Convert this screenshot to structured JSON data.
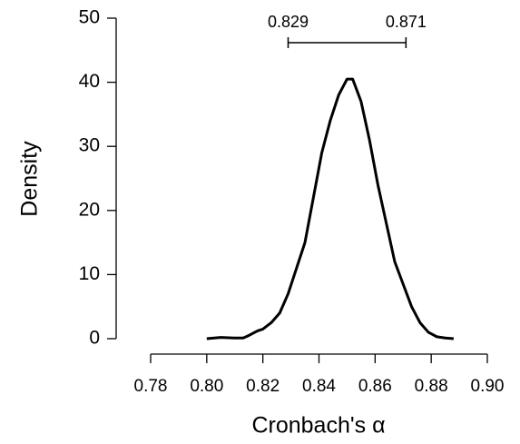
{
  "chart_data": {
    "type": "line",
    "xlabel": "Cronbach's α",
    "ylabel": "Density",
    "x": [
      0.8,
      0.805,
      0.81,
      0.813,
      0.815,
      0.818,
      0.82,
      0.823,
      0.826,
      0.829,
      0.832,
      0.835,
      0.838,
      0.841,
      0.844,
      0.847,
      0.85,
      0.852,
      0.855,
      0.858,
      0.861,
      0.864,
      0.867,
      0.87,
      0.873,
      0.876,
      0.879,
      0.882,
      0.885,
      0.888
    ],
    "series": [
      {
        "color": "#000000",
        "values": [
          0,
          0.2,
          0.1,
          0.1,
          0.5,
          1.2,
          1.5,
          2.5,
          4,
          7,
          11,
          15,
          22,
          29,
          34,
          38,
          40.5,
          40.5,
          37,
          31,
          24,
          18,
          12,
          8.5,
          5,
          2.5,
          1,
          0.3,
          0.1,
          0
        ]
      }
    ],
    "interval": [
      0.829,
      0.871
    ],
    "xlim": [
      0.78,
      0.9
    ],
    "xticks": [
      0.78,
      {
        "value": 0.8,
        "label": "0.80"
      },
      0.82,
      0.84,
      0.86,
      0.88,
      {
        "value": 0.9,
        "label": "0.90"
      }
    ],
    "ylim": [
      0,
      50
    ],
    "yticks": [
      0,
      10,
      20,
      30,
      40,
      50
    ]
  }
}
